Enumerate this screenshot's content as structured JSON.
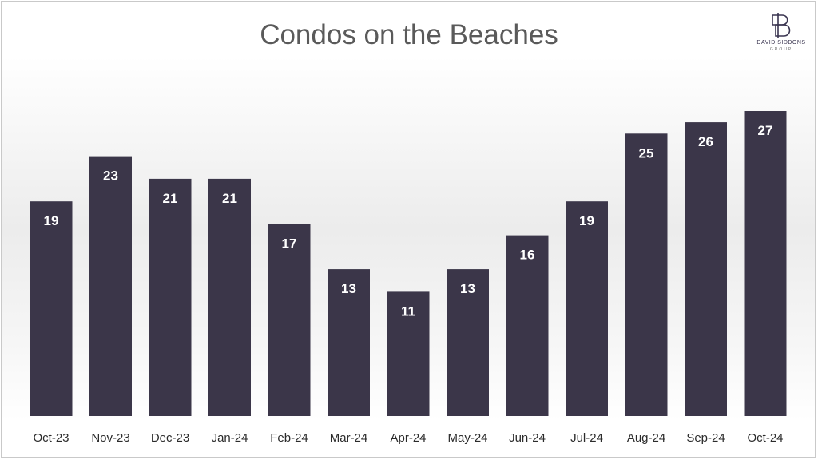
{
  "brand": {
    "name": "DAVID SIDDONS",
    "sub": "GROUP"
  },
  "colors": {
    "bar": "#3b3649",
    "title": "#5a5a5a"
  },
  "chart_data": {
    "type": "bar",
    "title": "Condos on the Beaches",
    "categories": [
      "Oct-23",
      "Nov-23",
      "Dec-23",
      "Jan-24",
      "Feb-24",
      "Mar-24",
      "Apr-24",
      "May-24",
      "Jun-24",
      "Jul-24",
      "Aug-24",
      "Sep-24",
      "Oct-24"
    ],
    "values": [
      19,
      23,
      21,
      21,
      17,
      13,
      11,
      13,
      16,
      19,
      25,
      26,
      27
    ],
    "xlabel": "",
    "ylabel": "",
    "ylim": [
      0,
      27
    ],
    "grid": false,
    "legend": "none",
    "data_labels": true
  }
}
